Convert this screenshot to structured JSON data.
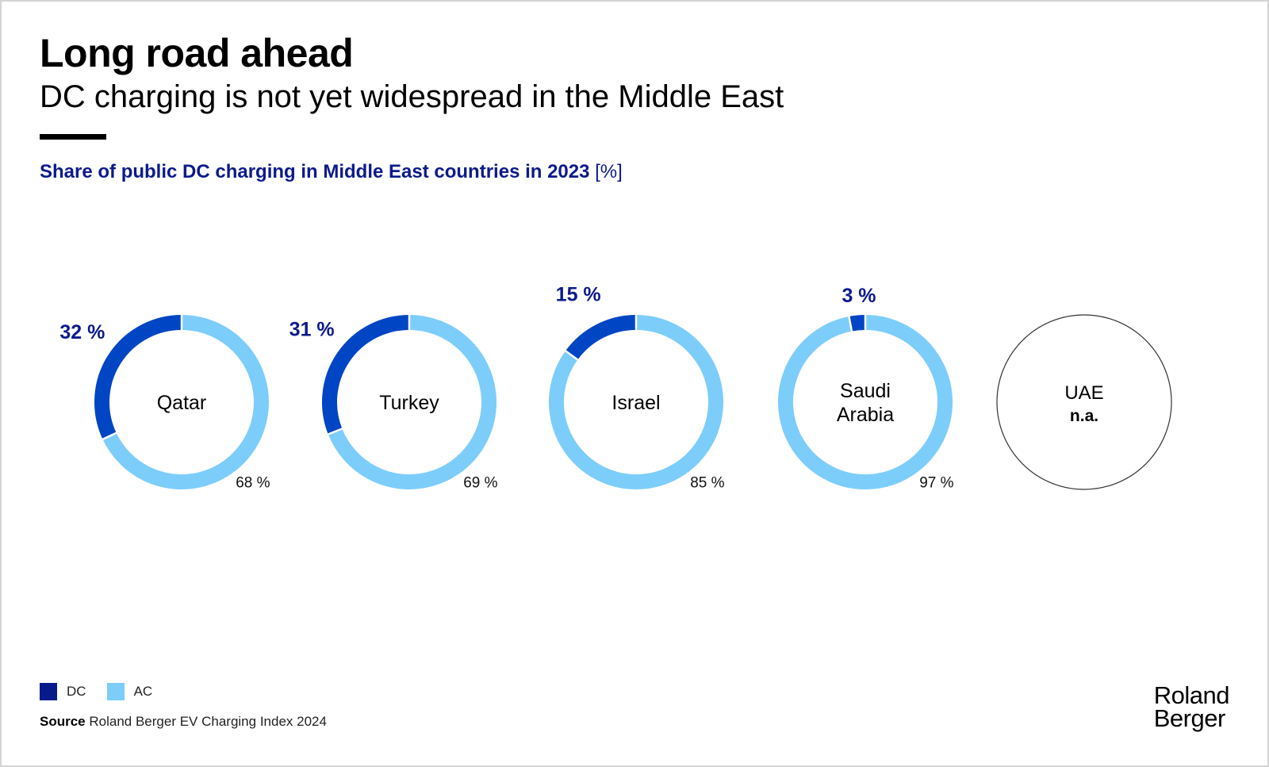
{
  "header": {
    "title": "Long road ahead",
    "subtitle": "DC charging is not yet widespread in the Middle East"
  },
  "colors": {
    "dc": "#0046c4",
    "ac": "#7dcdfb",
    "heading": "#0b1a8c",
    "legend_dc": "#071a8c",
    "legend_ac": "#7dcdfb"
  },
  "chart_data": {
    "type": "pie",
    "variant": "donut",
    "title": "Share of public DC charging in Middle East countries in 2023",
    "unit_label": "[%]",
    "series": [
      {
        "name": "DC"
      },
      {
        "name": "AC"
      }
    ],
    "countries": [
      {
        "name": "Qatar",
        "dc": 32,
        "ac": 68,
        "dc_label": "32 %",
        "ac_label": "68 %"
      },
      {
        "name": "Turkey",
        "dc": 31,
        "ac": 69,
        "dc_label": "31 %",
        "ac_label": "69 %"
      },
      {
        "name": "Israel",
        "dc": 15,
        "ac": 85,
        "dc_label": "15 %",
        "ac_label": "85 %"
      },
      {
        "name": "Saudi Arabia",
        "name_lines": [
          "Saudi",
          "Arabia"
        ],
        "dc": 3,
        "ac": 97,
        "dc_label": "3 %",
        "ac_label": "97 %"
      },
      {
        "name": "UAE",
        "dc": null,
        "ac": null,
        "na_label": "n.a."
      }
    ]
  },
  "legend": {
    "dc_label": "DC",
    "ac_label": "AC"
  },
  "footer": {
    "source_label": "Source",
    "source_text": " Roland Berger EV Charging Index 2024",
    "logo_line1": "Roland",
    "logo_line2": "Berger"
  }
}
